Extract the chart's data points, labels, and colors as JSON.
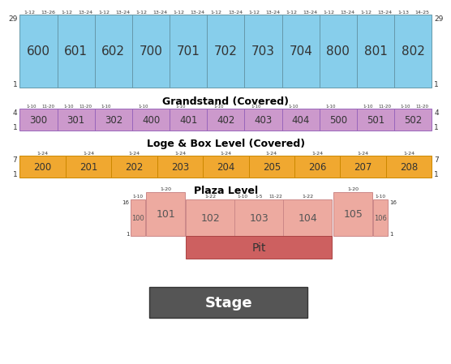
{
  "grandstand_sections": [
    "600",
    "601",
    "602",
    "700",
    "701",
    "702",
    "703",
    "704",
    "800",
    "801",
    "802"
  ],
  "grandstand_color": "#87CEEB",
  "grandstand_top_pairs": [
    [
      "1-12",
      "13-26"
    ],
    [
      "1-12",
      "13-24"
    ],
    [
      "1-12",
      "13-24"
    ],
    [
      "1-12",
      "13-24"
    ],
    [
      "1-12",
      "13-24"
    ],
    [
      "1-12",
      "13-24"
    ],
    [
      "1-12",
      "13-24"
    ],
    [
      "1-12",
      "13-24"
    ],
    [
      "1-12",
      "13-24"
    ],
    [
      "1-12",
      "13-24"
    ],
    [
      "1-13",
      "14-25"
    ]
  ],
  "grandstand_side_label": "29",
  "grandstand_bottom_label": "1",
  "grandstand_title": "Grandstand (Covered)",
  "loge_sections": [
    "300",
    "301",
    "302",
    "400",
    "401",
    "402",
    "403",
    "404",
    "500",
    "501",
    "502"
  ],
  "loge_color": "#CC99CC",
  "loge_top_pairs": [
    [
      "1-10",
      "11-20"
    ],
    [
      "1-10",
      "11-20"
    ],
    [
      "1-10",
      ""
    ],
    [
      "1-10",
      ""
    ],
    [
      "1-10",
      ""
    ],
    [
      "1-10",
      ""
    ],
    [
      "1-10",
      ""
    ],
    [
      "1-10",
      ""
    ],
    [
      "1-10",
      ""
    ],
    [
      "1-10",
      "11-20"
    ],
    [
      "1-10",
      "11-20"
    ]
  ],
  "loge_side_label": "4",
  "loge_bottom_label": "1",
  "loge_title": "Loge & Box Level (Covered)",
  "plaza_sections": [
    "200",
    "201",
    "202",
    "203",
    "204",
    "205",
    "206",
    "207",
    "208"
  ],
  "plaza_color": "#F0A830",
  "plaza_top_labels": [
    "1-24",
    "1-24",
    "1-24",
    "1-24",
    "1-24",
    "1-24",
    "1-24",
    "1-24",
    "1-24"
  ],
  "plaza_side_label": "7",
  "plaza_bottom_label": "1",
  "plaza_title": "Plaza Level",
  "floor_color": "#EDAAA0",
  "pit_color": "#CD6060",
  "stage_color": "#555555",
  "stage_text_color": "#FFFFFF",
  "bg_color": "#FFFFFF",
  "text_color": "#000000",
  "border_color_gs": "#6699AA",
  "border_color_lg": "#9966BB",
  "border_color_pl": "#CC8800",
  "border_color_floor": "#CC8888"
}
